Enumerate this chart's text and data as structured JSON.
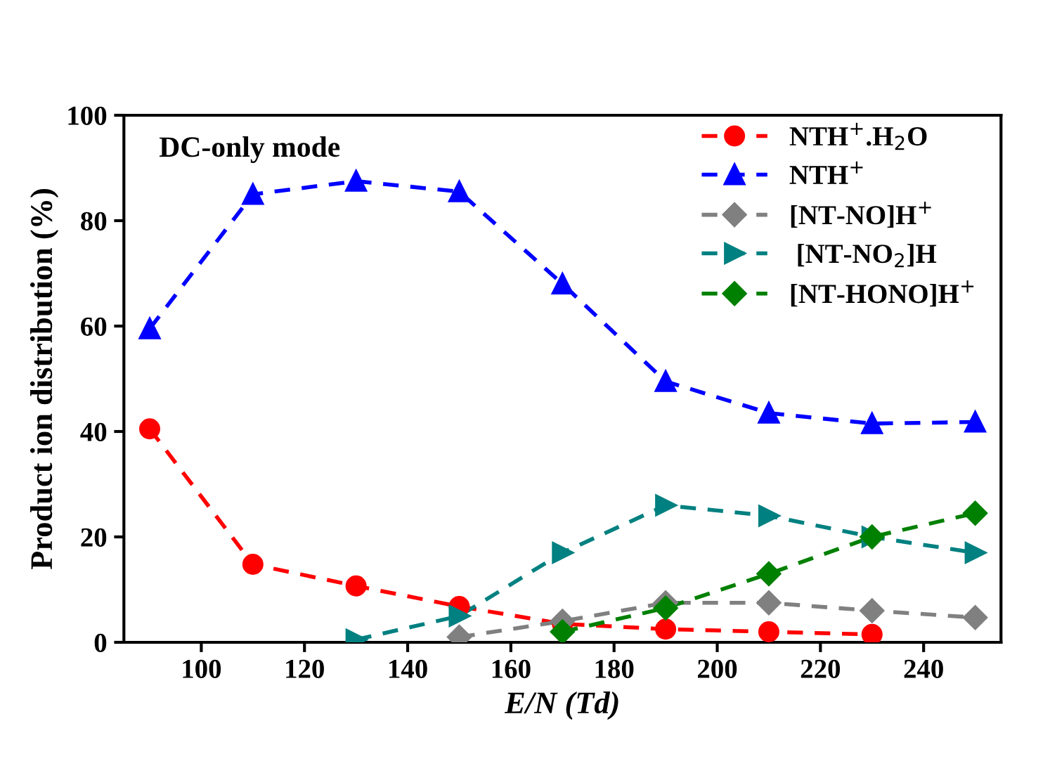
{
  "chart_data": {
    "type": "line",
    "xlabel": "E/N (Td)",
    "ylabel": "Product ion distribution (%)",
    "annotations": [
      "DC-only mode"
    ],
    "x": [
      90,
      110,
      130,
      150,
      170,
      190,
      210,
      230,
      250
    ],
    "xlim": [
      85,
      255
    ],
    "xticks": [
      100,
      120,
      140,
      160,
      180,
      200,
      220,
      240
    ],
    "ylim": [
      0,
      100
    ],
    "yticks": [
      0,
      20,
      40,
      60,
      80,
      100
    ],
    "grid": false,
    "legend": "top right",
    "line_style": "dashed",
    "series": [
      {
        "name": "NTH$^{+}$.H$_{2}$O",
        "color": "#ff0000",
        "marker": "circle",
        "values": [
          40.5,
          14.8,
          10.7,
          6.8,
          3.5,
          2.5,
          2.0,
          1.5,
          null
        ]
      },
      {
        "name": "NTH$^{+}$",
        "color": "#0000ff",
        "marker": "triangle",
        "values": [
          59.5,
          85,
          87.5,
          85.5,
          68,
          49.5,
          43.5,
          41.5,
          41.8
        ]
      },
      {
        "name": "[NT-NO]H$^{+}$",
        "color": "#808080",
        "marker": "diamond",
        "values": [
          null,
          null,
          null,
          1,
          4,
          7.5,
          7.5,
          6,
          4.7
        ]
      },
      {
        "name": " [NT-NO$_{2}$]H",
        "color": "#008080",
        "marker": "triangle_right",
        "values": [
          null,
          null,
          0.5,
          5,
          17,
          26,
          24,
          20,
          17
        ]
      },
      {
        "name": "[NT-HONO]H$^{+}$",
        "color": "#008000",
        "marker": "diamond",
        "values": [
          null,
          null,
          null,
          null,
          2,
          6.5,
          13,
          20,
          24.5
        ]
      }
    ]
  }
}
